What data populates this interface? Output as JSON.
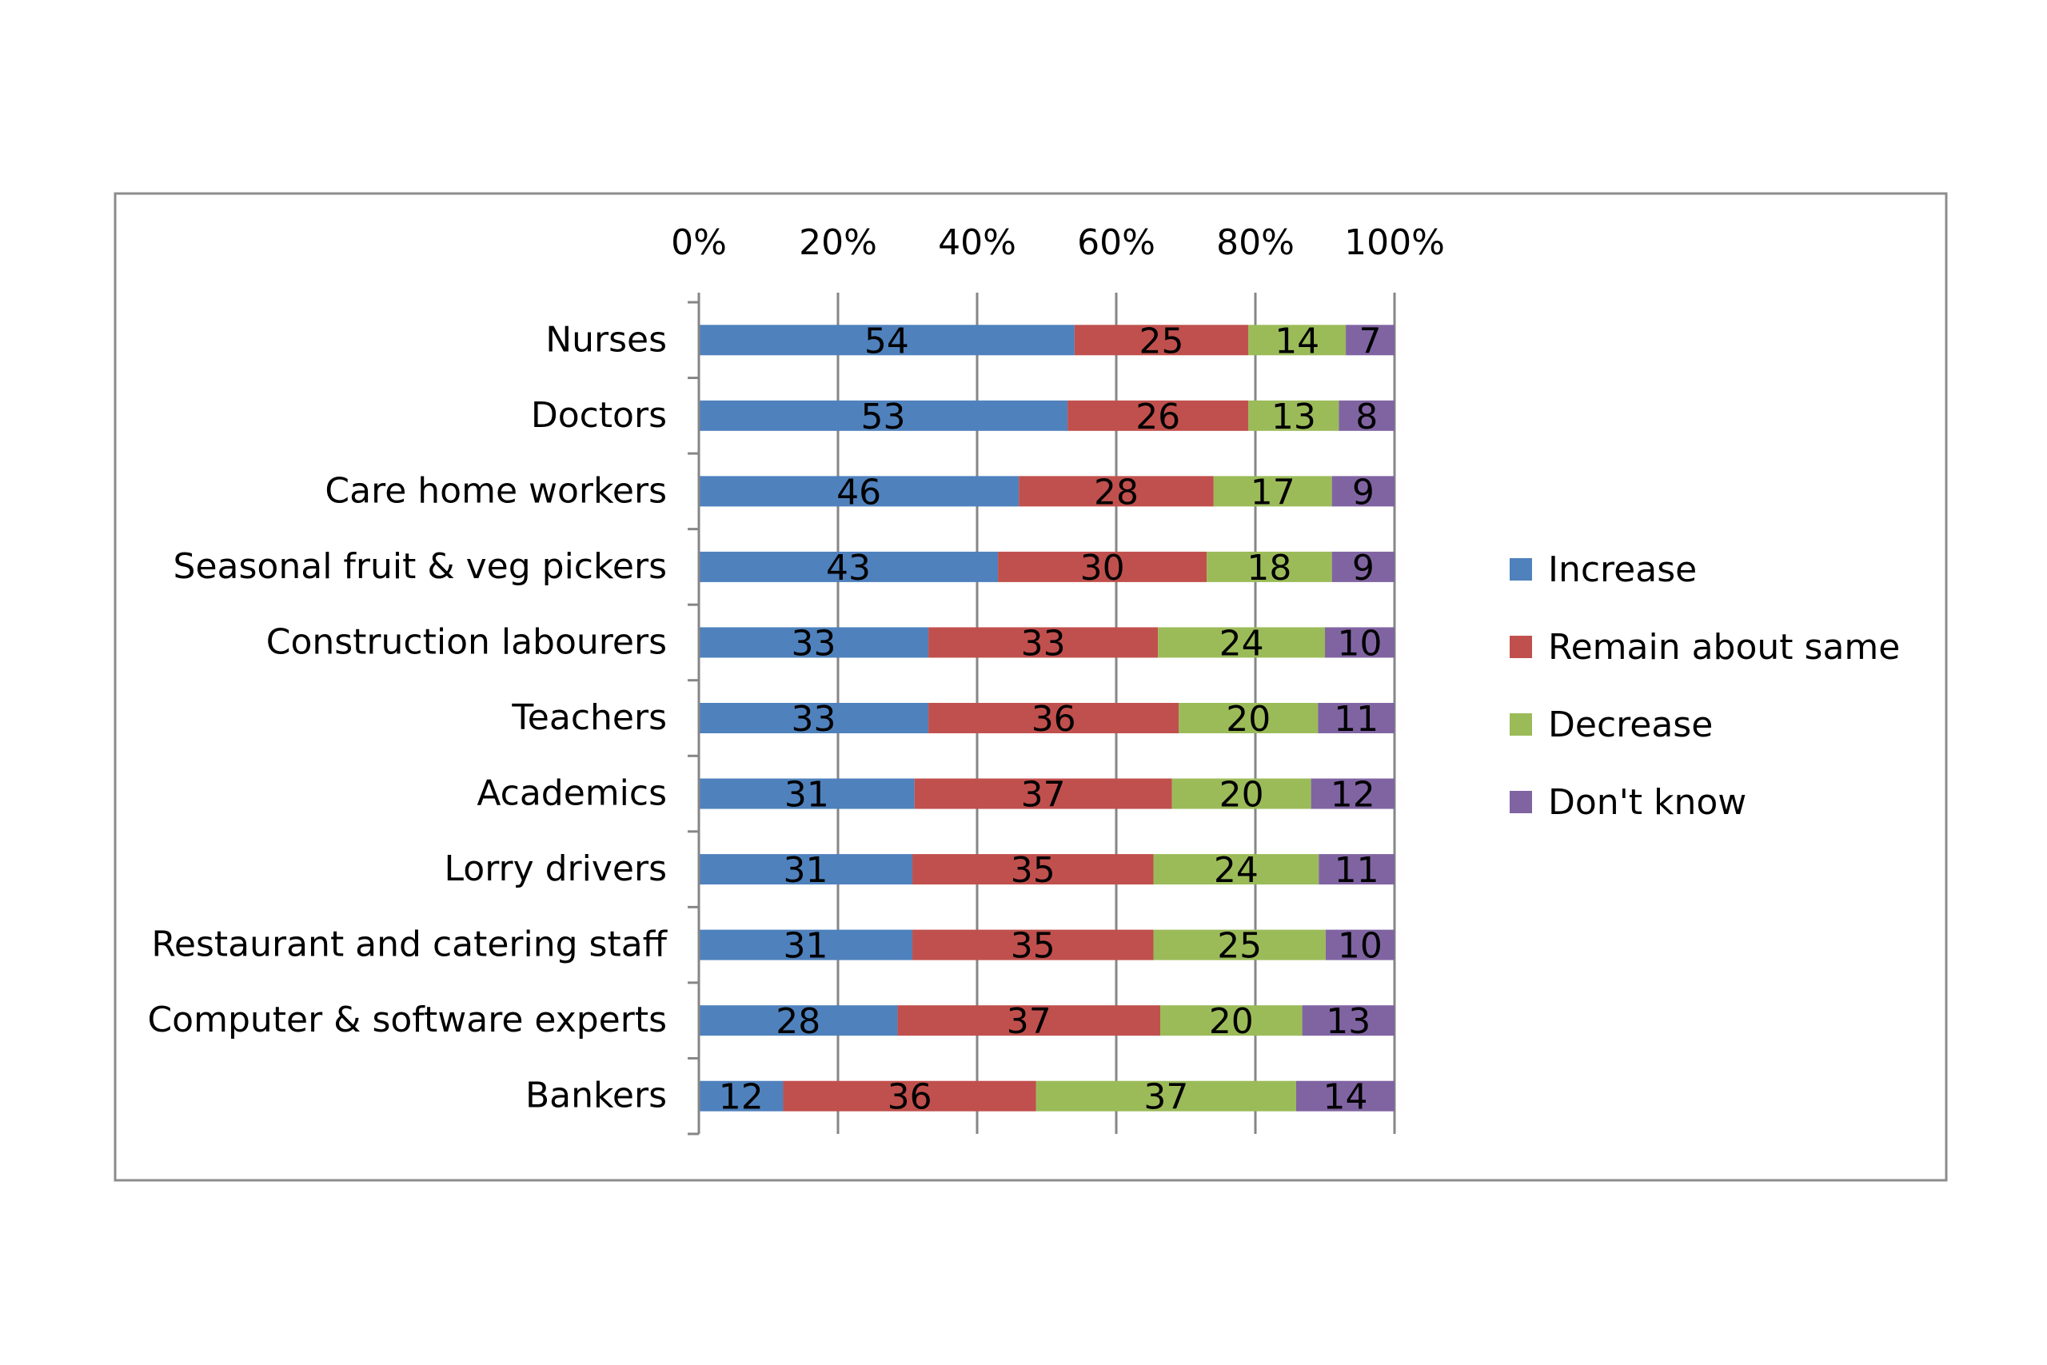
{
  "chart_data": {
    "type": "bar",
    "orientation": "horizontal",
    "stacked": "percent",
    "x_ticks": [
      "0%",
      "20%",
      "40%",
      "60%",
      "80%",
      "100%"
    ],
    "xlim": [
      0,
      100
    ],
    "x_axis_position": "top",
    "grid": true,
    "legend_position": "right",
    "categories": [
      "Nurses",
      "Doctors",
      "Care home workers",
      "Seasonal fruit & veg pickers",
      "Construction labourers",
      "Teachers",
      "Academics",
      "Lorry drivers",
      "Restaurant and catering staff",
      "Computer & software experts",
      "Bankers"
    ],
    "series": [
      {
        "name": "Increase",
        "color": "#4F81BD",
        "values": [
          54,
          53,
          46,
          43,
          33,
          33,
          31,
          31,
          31,
          28,
          12
        ]
      },
      {
        "name": "Remain about same",
        "color": "#C0504D",
        "values": [
          25,
          26,
          28,
          30,
          33,
          36,
          37,
          35,
          35,
          37,
          36
        ]
      },
      {
        "name": "Decrease",
        "color": "#9BBB59",
        "values": [
          14,
          13,
          17,
          18,
          24,
          20,
          20,
          24,
          25,
          20,
          37
        ]
      },
      {
        "name": "Don't know",
        "color": "#8064A2",
        "values": [
          7,
          8,
          9,
          9,
          10,
          11,
          12,
          11,
          10,
          13,
          14
        ]
      }
    ]
  }
}
